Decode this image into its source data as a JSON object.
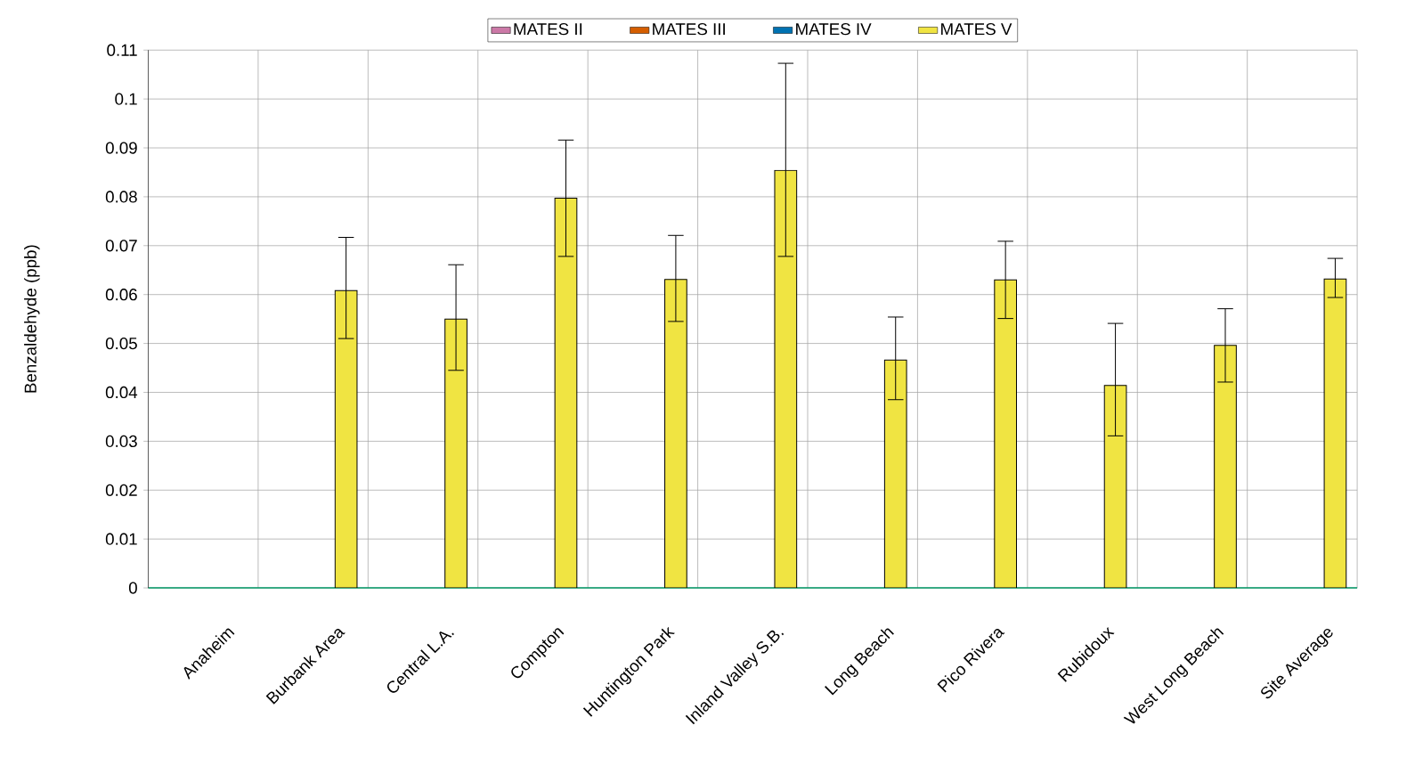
{
  "chart_data": {
    "type": "bar",
    "ylabel": "Benzaldehyde (ppb)",
    "categories": [
      "Anaheim",
      "Burbank Area",
      "Central L.A.",
      "Compton",
      "Huntington Park",
      "Inland Valley S.B.",
      "Long Beach",
      "Pico Rivera",
      "Rubidoux",
      "West Long Beach",
      "Site Average"
    ],
    "series": [
      {
        "name": "MATES II",
        "color": "#cc79a7",
        "values": [
          null,
          null,
          null,
          null,
          null,
          null,
          null,
          null,
          null,
          null,
          null
        ]
      },
      {
        "name": "MATES III",
        "color": "#d55e00",
        "values": [
          null,
          null,
          null,
          null,
          null,
          null,
          null,
          null,
          null,
          null,
          null
        ]
      },
      {
        "name": "MATES IV",
        "color": "#0072b2",
        "values": [
          null,
          null,
          null,
          null,
          null,
          null,
          null,
          null,
          null,
          null,
          null
        ]
      },
      {
        "name": "MATES V",
        "color": "#f0e442",
        "values": [
          null,
          0.0608,
          0.055,
          0.0797,
          0.0631,
          0.0854,
          0.0466,
          0.063,
          0.0414,
          0.0496,
          0.0632
        ],
        "errors": [
          null,
          [
            0.051,
            0.0717
          ],
          [
            0.0445,
            0.0661
          ],
          [
            0.0678,
            0.0916
          ],
          [
            0.0545,
            0.0721
          ],
          [
            0.0678,
            0.1073
          ],
          [
            0.0385,
            0.0554
          ],
          [
            0.0551,
            0.0709
          ],
          [
            0.0311,
            0.0541
          ],
          [
            0.0421,
            0.0571
          ],
          [
            0.0594,
            0.0674
          ]
        ]
      }
    ],
    "ylim": [
      0,
      0.11
    ],
    "yticks": [
      0,
      0.01,
      0.02,
      0.03,
      0.04,
      0.05,
      0.06,
      0.07,
      0.08,
      0.09,
      0.1,
      0.11
    ],
    "grid": true,
    "legend": "top"
  }
}
